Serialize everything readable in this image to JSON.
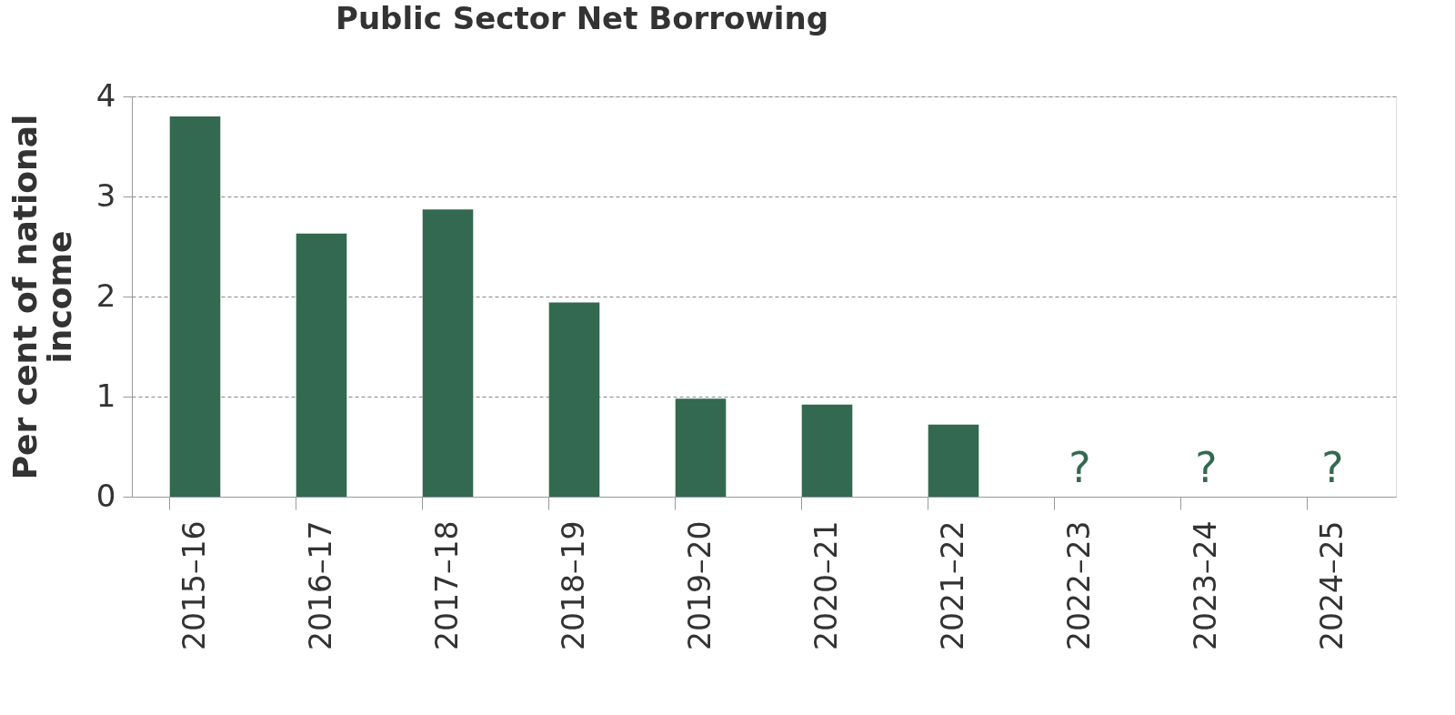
{
  "chart_data": {
    "type": "bar",
    "title": "Public Sector Net Borrowing",
    "ylabel": "Per cent of national income",
    "categories": [
      "2015–16",
      "2016–17",
      "2017–18",
      "2018–19",
      "2019–20",
      "2020–21",
      "2021–22",
      "2022–23",
      "2023–24",
      "2024–25"
    ],
    "values": [
      3.8,
      2.63,
      2.87,
      1.94,
      0.98,
      0.92,
      0.72,
      null,
      null,
      null
    ],
    "color": "#336950",
    "ylim": [
      0,
      4
    ],
    "yticks": [
      0,
      1,
      2,
      3,
      4
    ],
    "grid": "y",
    "annotations": [
      "?",
      "?",
      "?"
    ]
  }
}
